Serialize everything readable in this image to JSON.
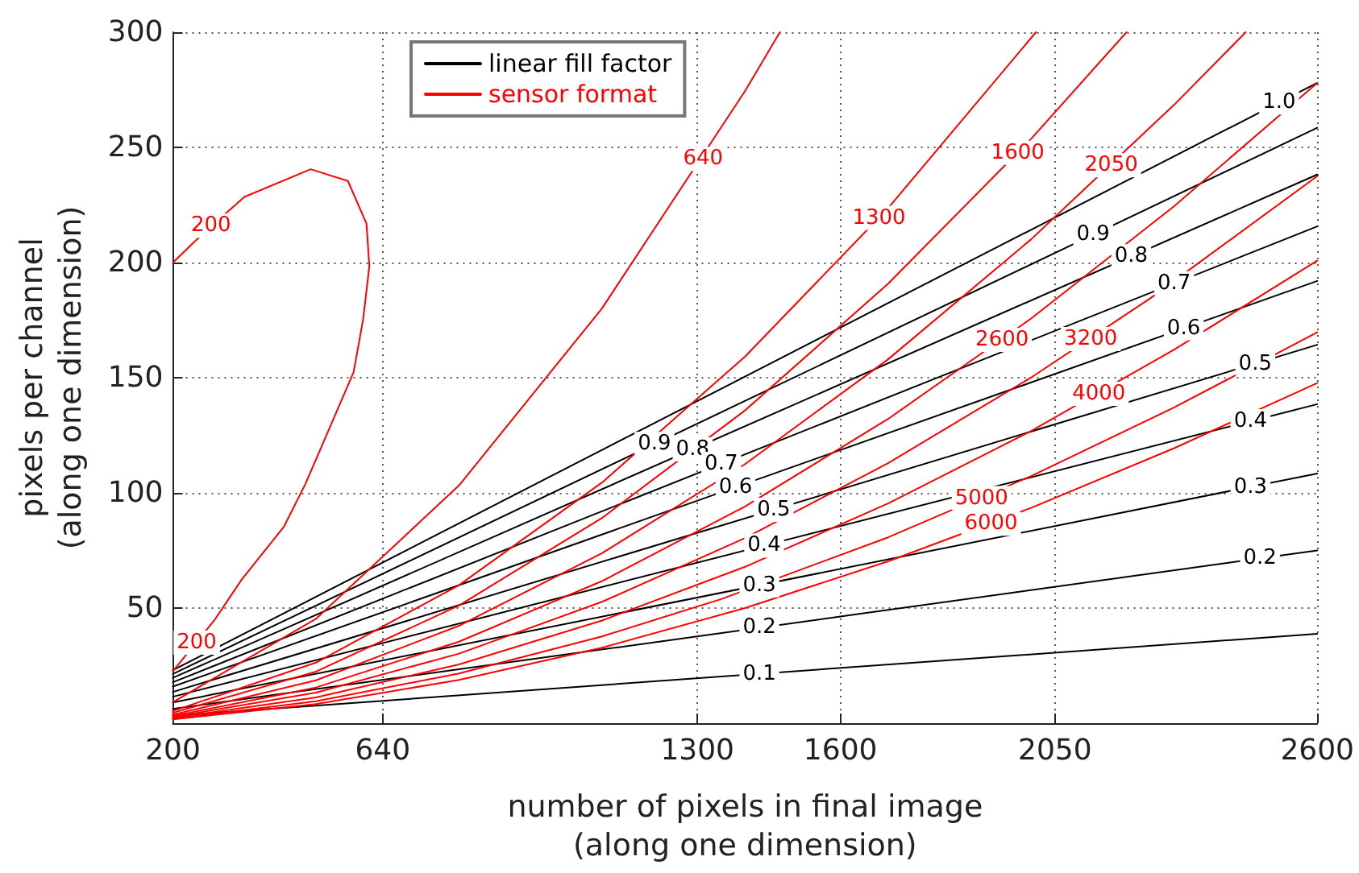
{
  "chart_data": {
    "type": "line",
    "xlabel": "number of pixels in final image\n(along one dimension)",
    "ylabel": "pixels per channel\n(along one dimension)",
    "xlim": [
      200,
      2600
    ],
    "xticks": [
      200,
      640,
      1300,
      1600,
      2050,
      2600
    ],
    "ylim": [
      0,
      300
    ],
    "yticks": [
      50,
      100,
      150,
      200,
      250,
      300
    ],
    "grid": true,
    "legend": "top left",
    "marker": "none",
    "line_style": "solid",
    "series": [
      {
        "name": "linear fill factor",
        "color": "#000000",
        "x": [
          200,
          2600
        ],
        "values": [
          23,
          278
        ]
      },
      {
        "color": "#000000",
        "x": [
          200,
          2600
        ],
        "values": [
          21.4,
          258.5
        ]
      },
      {
        "color": "#000000",
        "x": [
          200,
          2600
        ],
        "values": [
          19.7,
          238.2
        ]
      },
      {
        "color": "#000000",
        "x": [
          200,
          2600
        ],
        "values": [
          17.8,
          215.7
        ]
      },
      {
        "color": "#000000",
        "x": [
          200,
          2600
        ],
        "values": [
          15.9,
          192
        ]
      },
      {
        "color": "#000000",
        "x": [
          200,
          2600
        ],
        "values": [
          13.6,
          164.3
        ]
      },
      {
        "color": "#000000",
        "x": [
          200,
          2600
        ],
        "values": [
          11.5,
          138.5
        ]
      },
      {
        "color": "#000000",
        "x": [
          200,
          2600
        ],
        "values": [
          9,
          108.4
        ]
      },
      {
        "color": "#000000",
        "x": [
          200,
          2600
        ],
        "values": [
          6.2,
          75
        ]
      },
      {
        "color": "#000000",
        "x": [
          200,
          2600
        ],
        "values": [
          3.2,
          38.8
        ]
      },
      {
        "name": "sensor format",
        "color": "#ff0000",
        "x": [
          200,
          260,
          350,
          489,
          567,
          606,
          612,
          599,
          579,
          478,
          433,
          344,
          288,
          200
        ],
        "values": [
          200,
          212,
          228.5,
          240.5,
          235.4,
          216.9,
          198.4,
          175.4,
          152.4,
          103.9,
          85.4,
          62.3,
          45,
          22.6
        ]
      },
      {
        "color": "#ff0000",
        "x": [
          200,
          500,
          800,
          1100,
          1400,
          1473
        ],
        "values": [
          9.1,
          45.3,
          103.2,
          180.1,
          274.5,
          300
        ]
      },
      {
        "color": "#ff0000",
        "x": [
          200,
          500,
          800,
          1100,
          1400,
          1700,
          2010
        ],
        "values": [
          5.3,
          26.3,
          59.9,
          104.5,
          159.2,
          223.6,
          300
        ]
      },
      {
        "color": "#ff0000",
        "x": [
          200,
          500,
          800,
          1100,
          1400,
          1700,
          2000,
          2200
        ],
        "values": [
          4.5,
          22.4,
          51.1,
          89.1,
          135.8,
          190.8,
          253.7,
          300
        ]
      },
      {
        "color": "#ff0000",
        "x": [
          200,
          500,
          800,
          1100,
          1400,
          1700,
          2000,
          2300,
          2450
        ],
        "values": [
          3.7,
          18.6,
          42.3,
          73.8,
          112.5,
          158,
          210.1,
          268.5,
          300
        ]
      },
      {
        "color": "#ff0000",
        "x": [
          200,
          500,
          800,
          1100,
          1400,
          1700,
          2000,
          2300,
          2600
        ],
        "values": [
          3.1,
          15.5,
          35.4,
          61.7,
          94.1,
          132.1,
          175.7,
          224.5,
          278
        ]
      },
      {
        "color": "#ff0000",
        "x": [
          200,
          500,
          800,
          1100,
          1400,
          1700,
          2000,
          2250,
          2600
        ],
        "values": [
          2.7,
          13.3,
          30.2,
          52.7,
          80.4,
          112.9,
          150.1,
          184.5,
          237.5
        ]
      },
      {
        "color": "#ff0000",
        "x": [
          200,
          500,
          800,
          1100,
          1400,
          1700,
          2000,
          2300,
          2600
        ],
        "values": [
          2.3,
          11.2,
          25.5,
          44.6,
          67.9,
          95.4,
          126.9,
          162.2,
          200.8
        ]
      },
      {
        "color": "#ff0000",
        "x": [
          200,
          500,
          800,
          1100,
          1350,
          1700,
          2000,
          2300,
          2600
        ],
        "values": [
          1.9,
          9.5,
          21.6,
          37.7,
          53.9,
          80.7,
          107.3,
          137.1,
          169.7
        ]
      },
      {
        "color": "#ff0000",
        "x": [
          200,
          500,
          800,
          1100,
          1400,
          1700,
          2000,
          2300,
          2600
        ],
        "values": [
          1.7,
          8.3,
          18.8,
          32.8,
          50,
          70.3,
          93.5,
          119.4,
          147.7
        ]
      }
    ],
    "annotations": [
      {
        "text": "1.0",
        "x": 2520,
        "y": 269.5
      },
      {
        "text": "0.9",
        "x": 1210,
        "y": 121.2
      },
      {
        "text": "0.9",
        "x": 2130,
        "y": 212.1
      },
      {
        "text": "0.8",
        "x": 1290,
        "y": 118.9
      },
      {
        "text": "0.8",
        "x": 2210,
        "y": 202.7
      },
      {
        "text": "0.7",
        "x": 1350,
        "y": 112.6
      },
      {
        "text": "0.7",
        "x": 2300,
        "y": 191
      },
      {
        "text": "0.6",
        "x": 1380,
        "y": 102.5
      },
      {
        "text": "0.6",
        "x": 2320,
        "y": 171.5
      },
      {
        "text": "0.5",
        "x": 1460,
        "y": 92.7
      },
      {
        "text": "0.5",
        "x": 2470,
        "y": 156.1
      },
      {
        "text": "0.4",
        "x": 1440,
        "y": 77.1
      },
      {
        "text": "0.4",
        "x": 2460,
        "y": 131.1
      },
      {
        "text": "0.3",
        "x": 1430,
        "y": 59.9
      },
      {
        "text": "0.3",
        "x": 2460,
        "y": 102.6
      },
      {
        "text": "0.2",
        "x": 1430,
        "y": 41.5
      },
      {
        "text": "0.2",
        "x": 2480,
        "y": 71.6
      },
      {
        "text": "0.1",
        "x": 1430,
        "y": 21.4
      },
      {
        "text": "200",
        "x": 280,
        "y": 216
      },
      {
        "text": "200",
        "x": 250,
        "y": 35
      },
      {
        "text": "640",
        "x": 1312,
        "y": 245
      },
      {
        "text": "1300",
        "x": 1681,
        "y": 219.4
      },
      {
        "text": "1600",
        "x": 1972,
        "y": 247.6
      },
      {
        "text": "2050",
        "x": 2168,
        "y": 242.2
      },
      {
        "text": "2600",
        "x": 1939,
        "y": 166.4
      },
      {
        "text": "3200",
        "x": 2125,
        "y": 166.8
      },
      {
        "text": "4000",
        "x": 2142,
        "y": 143
      },
      {
        "text": "5000",
        "x": 1896,
        "y": 97.7
      },
      {
        "text": "6000",
        "x": 1916,
        "y": 86.6
      }
    ]
  }
}
